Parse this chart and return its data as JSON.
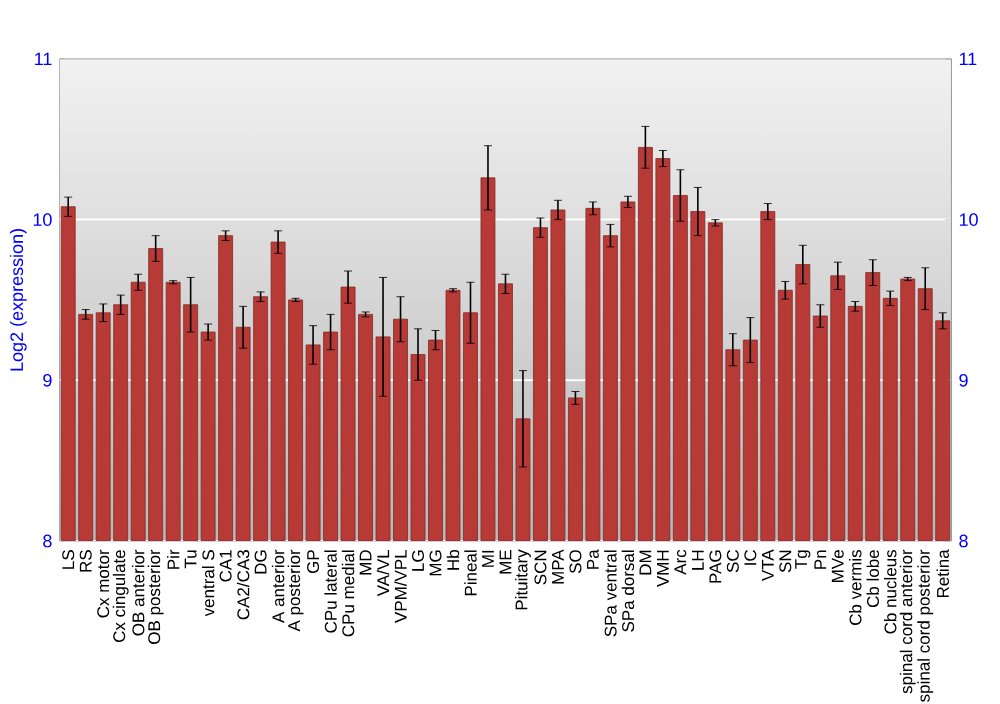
{
  "chart_data": {
    "type": "bar",
    "ylabel": "Log2 (expression)",
    "categories": [
      "LS",
      "RS",
      "Cx motor",
      "Cx cingulate",
      "OB anterior",
      "OB posterior",
      "Pir",
      "Tu",
      "ventral S",
      "CA1",
      "CA2/CA3",
      "DG",
      "A anterior",
      "A posterior",
      "GP",
      "CPu lateral",
      "CPu medial",
      "MD",
      "VA/VL",
      "VPM/VPL",
      "LG",
      "MG",
      "Hb",
      "Pineal",
      "MI",
      "ME",
      "Pituitary",
      "SCN",
      "MPA",
      "SO",
      "Pa",
      "SPa ventral",
      "SPa dorsal",
      "DM",
      "VMH",
      "Arc",
      "LH",
      "PAG",
      "SC",
      "IC",
      "VTA",
      "SN",
      "Tg",
      "Pn",
      "MVe",
      "Cb vermis",
      "Cb lobe",
      "Cb nucleus",
      "spinal cord anterior",
      "spinal cord posterior",
      "Retina"
    ],
    "values": [
      10.08,
      9.41,
      9.42,
      9.47,
      9.61,
      9.82,
      9.61,
      9.47,
      9.3,
      9.9,
      9.33,
      9.52,
      9.86,
      9.5,
      9.22,
      9.3,
      9.58,
      9.41,
      9.27,
      9.38,
      9.16,
      9.25,
      9.56,
      9.42,
      10.26,
      9.6,
      8.76,
      9.95,
      10.06,
      8.89,
      10.07,
      9.9,
      10.11,
      10.45,
      10.38,
      10.15,
      10.05,
      9.98,
      9.19,
      9.25,
      10.05,
      9.56,
      9.72,
      9.4,
      9.65,
      9.46,
      9.67,
      9.51,
      9.63,
      9.57,
      9.37
    ],
    "errors": [
      0.06,
      0.03,
      0.055,
      0.06,
      0.05,
      0.08,
      0.01,
      0.17,
      0.05,
      0.03,
      0.13,
      0.03,
      0.07,
      0.01,
      0.12,
      0.11,
      0.1,
      0.015,
      0.37,
      0.14,
      0.16,
      0.06,
      0.01,
      0.19,
      0.2,
      0.06,
      0.3,
      0.06,
      0.06,
      0.04,
      0.04,
      0.07,
      0.035,
      0.13,
      0.05,
      0.16,
      0.15,
      0.02,
      0.1,
      0.14,
      0.05,
      0.055,
      0.12,
      0.07,
      0.085,
      0.03,
      0.08,
      0.045,
      0.01,
      0.13,
      0.05
    ],
    "color": "#b83a36",
    "ylim": [
      8,
      11
    ],
    "yticks": [
      8,
      9,
      10,
      11
    ],
    "y2lim": [
      8,
      11
    ],
    "y2ticks": [
      8,
      9,
      10,
      11
    ],
    "grid": "y"
  }
}
